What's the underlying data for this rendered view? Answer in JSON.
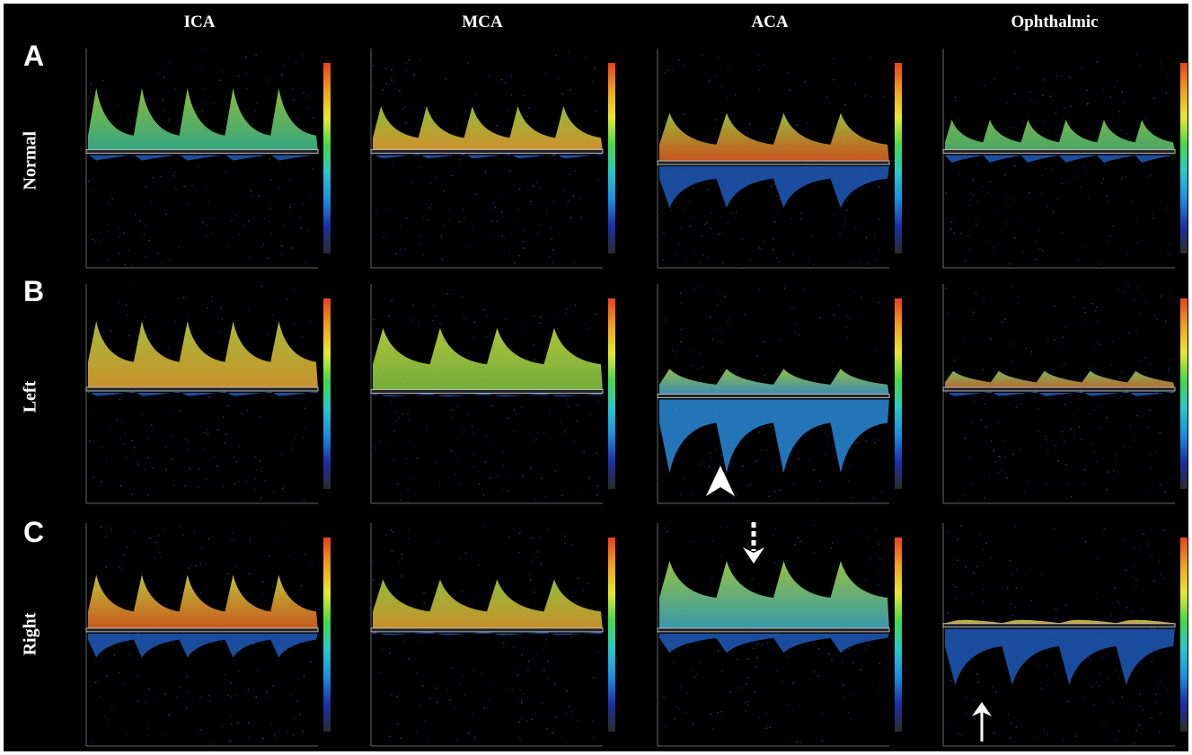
{
  "figure": {
    "columns": [
      "ICA",
      "MCA",
      "ACA",
      "Ophthalmic"
    ],
    "rows": [
      {
        "letter": "A",
        "label": "Normal"
      },
      {
        "letter": "B",
        "label": "Left"
      },
      {
        "letter": "C",
        "label": "Right"
      }
    ],
    "colors": {
      "background": "#000000",
      "text": "#ffffff",
      "baseline": "#ffffff",
      "colorbar": [
        "#2a2a2a",
        "#1c2fa8",
        "#1e8fe0",
        "#28c8c8",
        "#48d848",
        "#e8e830",
        "#f0a020",
        "#e84020"
      ]
    },
    "annotations": [
      {
        "type": "arrowhead",
        "panel": "B-ACA",
        "icon": "white-arrowhead-up-icon"
      },
      {
        "type": "dashed-arrow-down",
        "panel": "C-ACA",
        "icon": "dashed-arrow-down-icon"
      },
      {
        "type": "solid-arrow-up",
        "panel": "C-Ophthalmic",
        "icon": "arrow-up-icon"
      }
    ]
  }
}
